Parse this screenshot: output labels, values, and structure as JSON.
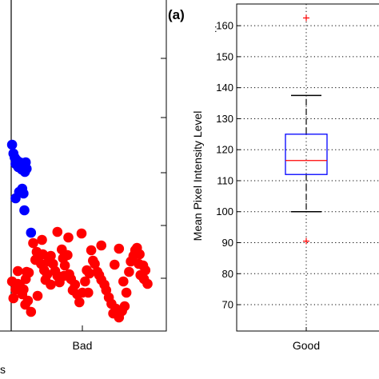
{
  "panel_label": "(a)",
  "chart_data": [
    {
      "type": "scatter",
      "panel": "left (cropped)",
      "categories": [
        "Bad"
      ],
      "visible_cropped_text": "s",
      "colors": {
        "blue": "#0000ff",
        "red": "#ff0000"
      },
      "series": [
        {
          "color": "blue",
          "points": [
            [
              0.02,
              181
            ],
            [
              0.05,
              192
            ],
            [
              0.08,
              197
            ],
            [
              0.1,
              205
            ],
            [
              0.12,
              200
            ],
            [
              0.16,
              209
            ],
            [
              0.2,
              203
            ],
            [
              0.24,
              212
            ],
            [
              0.28,
              207
            ],
            [
              0.31,
              215
            ],
            [
              0.33,
              203
            ],
            [
              0.35,
              211
            ],
            [
              0.25,
              236
            ],
            [
              0.18,
              240
            ],
            [
              0.28,
              242
            ],
            [
              0.1,
              248
            ],
            [
              0.3,
              263
            ],
            [
              0.45,
              291
            ]
          ]
        },
        {
          "color": "red",
          "points": [
            [
              0.02,
              352
            ],
            [
              0.05,
              373
            ],
            [
              0.1,
              362
            ],
            [
              0.15,
              355
            ],
            [
              0.2,
              358
            ],
            [
              0.25,
              368
            ],
            [
              0.28,
              362
            ],
            [
              0.33,
              349
            ],
            [
              0.38,
              376
            ],
            [
              0.45,
              390
            ],
            [
              0.32,
              381
            ],
            [
              0.4,
              341
            ],
            [
              0.55,
              325
            ],
            [
              0.58,
              315
            ],
            [
              0.62,
              320
            ],
            [
              0.68,
              330
            ],
            [
              0.72,
              318
            ],
            [
              0.75,
              338
            ],
            [
              0.78,
              350
            ],
            [
              0.82,
              343
            ],
            [
              0.85,
              327
            ],
            [
              0.9,
              320
            ],
            [
              0.95,
              330
            ],
            [
              1.0,
              339
            ],
            [
              1.05,
              345
            ],
            [
              1.1,
              353
            ],
            [
              1.15,
              312
            ],
            [
              1.18,
              323
            ],
            [
              1.22,
              332
            ],
            [
              1.28,
              319
            ],
            [
              1.32,
              343
            ],
            [
              1.36,
              349
            ],
            [
              1.4,
              363
            ],
            [
              1.45,
              356
            ],
            [
              1.5,
              368
            ],
            [
              1.55,
              378
            ],
            [
              1.62,
              366
            ],
            [
              1.68,
              352
            ],
            [
              1.72,
              338
            ],
            [
              1.78,
              342
            ],
            [
              1.82,
              313
            ],
            [
              1.86,
              326
            ],
            [
              1.9,
              330
            ],
            [
              1.96,
              340
            ],
            [
              2.0,
              344
            ],
            [
              2.05,
              350
            ],
            [
              2.12,
              356
            ],
            [
              2.16,
              363
            ],
            [
              2.22,
              372
            ],
            [
              2.28,
              380
            ],
            [
              2.32,
              392
            ],
            [
              2.38,
              386
            ],
            [
              2.45,
              397
            ],
            [
              2.52,
              389
            ],
            [
              2.58,
              383
            ],
            [
              2.62,
              366
            ],
            [
              2.68,
              340
            ],
            [
              2.72,
              327
            ],
            [
              2.78,
              320
            ],
            [
              2.82,
              313
            ],
            [
              2.86,
              310
            ],
            [
              2.9,
              330
            ],
            [
              2.94,
              344
            ],
            [
              3.0,
              332
            ],
            [
              3.05,
              338
            ],
            [
              3.1,
              355
            ],
            [
              0.6,
              370
            ],
            [
              0.7,
              300
            ],
            [
              0.5,
              304
            ],
            [
              1.3,
              297
            ],
            [
              1.6,
              292
            ],
            [
              2.05,
              307
            ],
            [
              2.35,
              331
            ],
            [
              0.35,
              340
            ],
            [
              0.9,
              356
            ],
            [
              1.2,
              345
            ],
            [
              1.75,
              366
            ],
            [
              2.55,
              352
            ],
            [
              2.92,
              318
            ],
            [
              1.05,
              290
            ],
            [
              2.45,
              311
            ],
            [
              0.15,
              339
            ],
            [
              3.02,
              349
            ]
          ]
        }
      ]
    },
    {
      "type": "boxplot",
      "panel": "right",
      "title": "",
      "xlabel": "",
      "ylabel": "Mean Pixel Intensity Level",
      "categories": [
        "Good"
      ],
      "ylim": [
        61.5,
        167
      ],
      "yticks": [
        70,
        80,
        90,
        100,
        110,
        120,
        130,
        140,
        150,
        160
      ],
      "ytick_labels": [
        "70",
        "80",
        "90",
        "100",
        "110",
        "120",
        "130",
        "140",
        "150",
        "160"
      ],
      "visible_cropped_text": ":",
      "grid": true,
      "boxes": [
        {
          "category": "Good",
          "whisker_low": 100,
          "q1": 112,
          "median": 116.5,
          "q3": 125,
          "whisker_high": 137.5,
          "outliers": [
            90.5,
            162.5
          ]
        }
      ],
      "colors": {
        "box": "#0000ff",
        "median": "#ff0000",
        "outlier": "#ff0000",
        "whisker": "#000000",
        "grid": "#000000"
      }
    }
  ]
}
